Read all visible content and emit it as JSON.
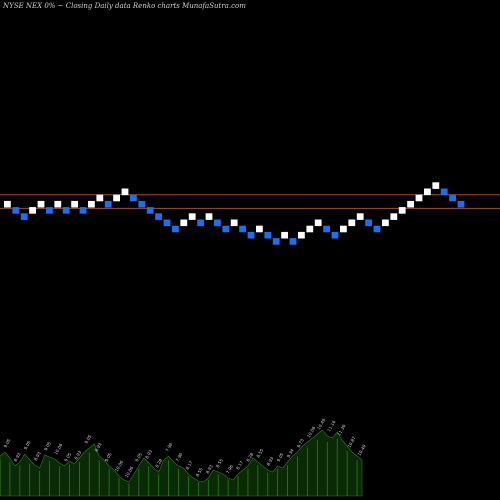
{
  "title": "NYSE NEX  0% ~  Closing Daily data  Renko  charts MunafaSutra.com",
  "chart_data": {
    "type": "renko",
    "title": "NYSE NEX  0% ~  Closing Daily data  Renko  charts MunafaSutra.com",
    "box_size": 1,
    "price_range": [
      0,
      45
    ],
    "colors": {
      "up": "#ffffff",
      "down": "#1e6ef0",
      "line": "#a0502d",
      "volume": "#0a2a06",
      "background": "#000000"
    },
    "horizontal_lines": [
      {
        "name": "resistance",
        "value": 16.5
      },
      {
        "name": "support",
        "value": 14.3
      }
    ],
    "bricks": [
      {
        "dir": "up",
        "value": 15
      },
      {
        "dir": "down",
        "value": 14
      },
      {
        "dir": "down",
        "value": 13
      },
      {
        "dir": "up",
        "value": 14
      },
      {
        "dir": "up",
        "value": 15
      },
      {
        "dir": "down",
        "value": 14
      },
      {
        "dir": "up",
        "value": 15
      },
      {
        "dir": "down",
        "value": 14
      },
      {
        "dir": "up",
        "value": 15
      },
      {
        "dir": "down",
        "value": 14
      },
      {
        "dir": "up",
        "value": 15
      },
      {
        "dir": "up",
        "value": 16
      },
      {
        "dir": "down",
        "value": 15
      },
      {
        "dir": "up",
        "value": 16
      },
      {
        "dir": "up",
        "value": 17
      },
      {
        "dir": "down",
        "value": 16
      },
      {
        "dir": "down",
        "value": 15
      },
      {
        "dir": "down",
        "value": 14
      },
      {
        "dir": "down",
        "value": 13
      },
      {
        "dir": "down",
        "value": 12
      },
      {
        "dir": "down",
        "value": 11
      },
      {
        "dir": "up",
        "value": 12
      },
      {
        "dir": "up",
        "value": 13
      },
      {
        "dir": "down",
        "value": 12
      },
      {
        "dir": "up",
        "value": 13
      },
      {
        "dir": "down",
        "value": 12
      },
      {
        "dir": "down",
        "value": 11
      },
      {
        "dir": "up",
        "value": 12
      },
      {
        "dir": "down",
        "value": 11
      },
      {
        "dir": "down",
        "value": 10
      },
      {
        "dir": "up",
        "value": 11
      },
      {
        "dir": "down",
        "value": 10
      },
      {
        "dir": "down",
        "value": 9
      },
      {
        "dir": "up",
        "value": 10
      },
      {
        "dir": "down",
        "value": 9
      },
      {
        "dir": "up",
        "value": 10
      },
      {
        "dir": "up",
        "value": 11
      },
      {
        "dir": "up",
        "value": 12
      },
      {
        "dir": "down",
        "value": 11
      },
      {
        "dir": "down",
        "value": 10
      },
      {
        "dir": "up",
        "value": 11
      },
      {
        "dir": "up",
        "value": 12
      },
      {
        "dir": "up",
        "value": 13
      },
      {
        "dir": "down",
        "value": 12
      },
      {
        "dir": "down",
        "value": 11
      },
      {
        "dir": "up",
        "value": 12
      },
      {
        "dir": "up",
        "value": 13
      },
      {
        "dir": "up",
        "value": 14
      },
      {
        "dir": "up",
        "value": 15
      },
      {
        "dir": "up",
        "value": 16
      },
      {
        "dir": "up",
        "value": 17
      },
      {
        "dir": "up",
        "value": 18
      },
      {
        "dir": "down",
        "value": 17
      },
      {
        "dir": "down",
        "value": 16
      },
      {
        "dir": "down",
        "value": 15
      }
    ],
    "volume": [
      40,
      44,
      38,
      30,
      34,
      42,
      36,
      31,
      28,
      41,
      39,
      37,
      33,
      30,
      35,
      32,
      38,
      44,
      48,
      52,
      40,
      36,
      30,
      26,
      20,
      16,
      14,
      22,
      30,
      38,
      33,
      28,
      24,
      36,
      40,
      34,
      30,
      28,
      22,
      18,
      15,
      14,
      18,
      26,
      24,
      22,
      18,
      16,
      22,
      26,
      30,
      38,
      34,
      30,
      26,
      24,
      30,
      28,
      34,
      40,
      44,
      50,
      54,
      58,
      62,
      66,
      60,
      58,
      64,
      56,
      50,
      44,
      40,
      36
    ],
    "volume_labels": [
      "9.05",
      "8.93",
      "9.05",
      "8.93",
      "9.05",
      "10.06",
      "9.05",
      "8.93",
      "9.05",
      "8.93",
      "9.05",
      "10.06",
      "10.06",
      "9.05",
      "8.93",
      "8.28",
      "7.96",
      "7.96",
      "8.17",
      "8.55",
      "8.93",
      "8.55",
      "7.96",
      "8.17",
      "8.28",
      "8.55",
      "8.93",
      "9.05",
      "9.34",
      "9.73",
      "10.06",
      "10.49",
      "11.16",
      "11.39",
      "10.87",
      "10.49"
    ]
  }
}
